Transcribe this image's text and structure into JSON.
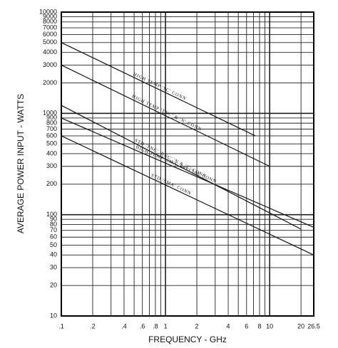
{
  "chart_data": {
    "type": "line",
    "xlabel": "FREQUENCY - GHz",
    "ylabel": "AVERAGE POWER INPUT - WATTS",
    "xscale": "log",
    "yscale": "log",
    "grid": true,
    "xlim": [
      0.1,
      26.5
    ],
    "ylim": [
      10,
      10000
    ],
    "xticks": [
      {
        "value": 0.1,
        "label": ".1"
      },
      {
        "value": 0.2,
        "label": ".2"
      },
      {
        "value": 0.4,
        "label": ".4"
      },
      {
        "value": 0.6,
        "label": ".6"
      },
      {
        "value": 0.8,
        "label": ".8"
      },
      1,
      2,
      4,
      6,
      8,
      10,
      20,
      26.5
    ],
    "xminor": [
      0.3,
      0.5,
      0.7,
      0.9,
      3,
      5,
      7,
      9
    ],
    "yticks": [
      10,
      20,
      30,
      40,
      50,
      60,
      70,
      80,
      90,
      100,
      200,
      300,
      400,
      500,
      600,
      700,
      800,
      900,
      1000,
      2000,
      3000,
      4000,
      5000,
      6000,
      7000,
      8000,
      9000,
      10000
    ],
    "series": [
      {
        "name": "HIGH TEMP 'SC' CONN",
        "color": "#111111",
        "x": [
          0.1,
          7.3
        ],
        "values": [
          5000,
          600
        ]
      },
      {
        "name": "HIGH TEMP 'TNC' & 'N' CONN",
        "color": "#111111",
        "x": [
          0.1,
          10
        ],
        "values": [
          3000,
          300
        ]
      },
      {
        "name": "STD 'TNC','BNC','N & 'C' CONN",
        "color": "#111111",
        "x": [
          0.1,
          20
        ],
        "values": [
          1200,
          72
        ]
      },
      {
        "name": "HIGH TEMP 'SMA' SPECIAL CONN",
        "color": "#111111",
        "x": [
          0.1,
          26.5
        ],
        "values": [
          900,
          75
        ]
      },
      {
        "name": "STD 'SMA' CONN",
        "color": "#111111",
        "x": [
          0.1,
          26.5
        ],
        "values": [
          600,
          40
        ]
      }
    ]
  }
}
